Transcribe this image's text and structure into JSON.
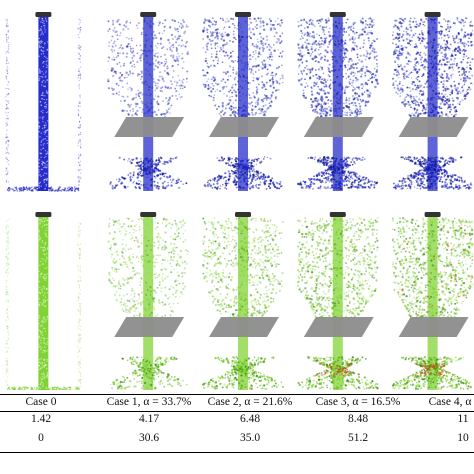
{
  "panels": [
    {
      "label": "Case 0",
      "variant": "plain"
    },
    {
      "label": "Case 1",
      "variant": "hopper",
      "density": 0.55
    },
    {
      "label": "Case 2",
      "variant": "hopper",
      "density": 0.75
    },
    {
      "label": "Case 3",
      "variant": "hopper",
      "density": 0.9
    },
    {
      "label": "Case 4",
      "variant": "hopper",
      "density": 1.0
    }
  ],
  "rows": [
    {
      "name": "blue",
      "particle_color": "#1a22c8",
      "accent_color": "#0a1478"
    },
    {
      "name": "green",
      "particle_color": "#7ad12a",
      "accent_color": "#3f8a10",
      "hot_color": "#c8501a"
    }
  ],
  "table": {
    "headers": [
      "Case 0",
      "Case 1, α = 33.7%",
      "Case 2, α = 21.6%",
      "Case 3, α = 16.5%",
      "Case 4, α"
    ],
    "row1": [
      "1.42",
      "4.17",
      "6.48",
      "8.48",
      "11"
    ],
    "row2": [
      "0",
      "30.6",
      "35.0",
      "51.2",
      "10"
    ]
  },
  "colors": {
    "baffle": "#8c8c8c",
    "cap": "#333333"
  }
}
